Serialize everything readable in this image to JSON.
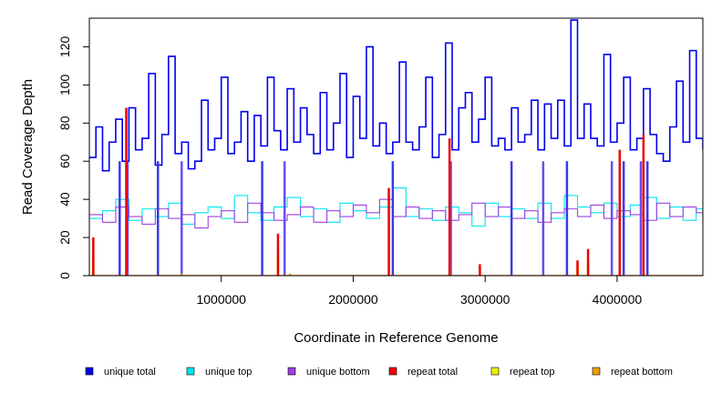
{
  "chart_data": {
    "type": "line",
    "title": "",
    "xlabel": "Coordinate in Reference Genome",
    "ylabel": "Read Coverage Depth",
    "xlim": [
      0,
      4650000
    ],
    "ylim": [
      0,
      135
    ],
    "x_ticks": [
      1000000,
      2000000,
      3000000,
      4000000
    ],
    "x_tick_labels": [
      "1000000",
      "2000000",
      "3000000",
      "4000000"
    ],
    "y_ticks": [
      0,
      20,
      40,
      60,
      80,
      100,
      120
    ],
    "y_tick_labels": [
      "0",
      "20",
      "40",
      "60",
      "80",
      "100",
      "120"
    ],
    "grid": false,
    "legend_position": "bottom",
    "colors": {
      "unique_total": "#0000ee",
      "unique_top": "#00e5ee",
      "unique_bottom": "#a040e0",
      "repeat_total": "#ee0000",
      "repeat_top": "#eeee00",
      "repeat_bottom": "#eea000"
    },
    "series": [
      {
        "name": "unique total",
        "color": "#0000ee",
        "x": [
          0,
          50000,
          100000,
          150000,
          200000,
          250000,
          300000,
          350000,
          400000,
          450000,
          500000,
          550000,
          600000,
          650000,
          700000,
          750000,
          800000,
          850000,
          900000,
          950000,
          1000000,
          1050000,
          1100000,
          1150000,
          1200000,
          1250000,
          1300000,
          1350000,
          1400000,
          1450000,
          1500000,
          1550000,
          1600000,
          1650000,
          1700000,
          1750000,
          1800000,
          1850000,
          1900000,
          1950000,
          2000000,
          2050000,
          2100000,
          2150000,
          2200000,
          2250000,
          2300000,
          2350000,
          2400000,
          2450000,
          2500000,
          2550000,
          2600000,
          2650000,
          2700000,
          2750000,
          2800000,
          2850000,
          2900000,
          2950000,
          3000000,
          3050000,
          3100000,
          3150000,
          3200000,
          3250000,
          3300000,
          3350000,
          3400000,
          3450000,
          3500000,
          3550000,
          3600000,
          3650000,
          3700000,
          3750000,
          3800000,
          3850000,
          3900000,
          3950000,
          4000000,
          4050000,
          4100000,
          4150000,
          4200000,
          4250000,
          4300000,
          4350000,
          4400000,
          4450000,
          4500000,
          4550000,
          4600000,
          4650000
        ],
        "values": [
          62,
          78,
          55,
          70,
          82,
          60,
          88,
          66,
          72,
          106,
          58,
          74,
          115,
          64,
          70,
          56,
          60,
          92,
          66,
          72,
          104,
          64,
          70,
          86,
          60,
          84,
          68,
          104,
          76,
          66,
          98,
          70,
          88,
          74,
          64,
          96,
          66,
          80,
          106,
          62,
          94,
          72,
          120,
          68,
          80,
          64,
          70,
          112,
          70,
          66,
          78,
          104,
          62,
          74,
          122,
          66,
          88,
          96,
          70,
          82,
          104,
          68,
          72,
          66,
          88,
          70,
          74,
          92,
          66,
          90,
          72,
          92,
          68,
          134,
          72,
          90,
          72,
          68,
          116,
          70,
          80,
          104,
          66,
          72,
          98,
          74,
          64,
          60,
          78,
          102,
          70,
          118,
          72,
          66
        ]
      },
      {
        "name": "unique top",
        "color": "#00e5ee",
        "x": [
          0,
          100000,
          200000,
          300000,
          400000,
          500000,
          600000,
          700000,
          800000,
          900000,
          1000000,
          1100000,
          1200000,
          1300000,
          1400000,
          1500000,
          1600000,
          1700000,
          1800000,
          1900000,
          2000000,
          2100000,
          2200000,
          2300000,
          2400000,
          2500000,
          2600000,
          2700000,
          2800000,
          2900000,
          3000000,
          3100000,
          3200000,
          3300000,
          3400000,
          3500000,
          3600000,
          3700000,
          3800000,
          3900000,
          4000000,
          4100000,
          4200000,
          4300000,
          4400000,
          4500000,
          4600000,
          4650000
        ],
        "values": [
          30,
          34,
          40,
          29,
          35,
          31,
          38,
          27,
          33,
          36,
          30,
          42,
          33,
          29,
          36,
          41,
          31,
          35,
          28,
          38,
          34,
          30,
          36,
          46,
          31,
          35,
          29,
          36,
          33,
          26,
          38,
          31,
          35,
          30,
          38,
          30,
          42,
          36,
          33,
          38,
          31,
          37,
          41,
          30,
          36,
          29,
          35,
          30
        ]
      },
      {
        "name": "unique bottom",
        "color": "#a040e0",
        "x": [
          0,
          100000,
          200000,
          300000,
          400000,
          500000,
          600000,
          700000,
          800000,
          900000,
          1000000,
          1100000,
          1200000,
          1300000,
          1400000,
          1500000,
          1600000,
          1700000,
          1800000,
          1900000,
          2000000,
          2100000,
          2200000,
          2300000,
          2400000,
          2500000,
          2600000,
          2700000,
          2800000,
          2900000,
          3000000,
          3100000,
          3200000,
          3300000,
          3400000,
          3500000,
          3600000,
          3700000,
          3800000,
          3900000,
          4000000,
          4100000,
          4200000,
          4300000,
          4400000,
          4500000,
          4600000,
          4650000
        ],
        "values": [
          32,
          28,
          36,
          31,
          27,
          35,
          30,
          32,
          25,
          31,
          34,
          28,
          38,
          33,
          29,
          32,
          36,
          28,
          34,
          31,
          37,
          33,
          40,
          31,
          36,
          30,
          34,
          29,
          32,
          38,
          31,
          36,
          30,
          34,
          28,
          33,
          35,
          31,
          37,
          30,
          34,
          32,
          29,
          38,
          31,
          36,
          33,
          30
        ]
      },
      {
        "name": "repeat total",
        "color": "#ee0000",
        "x": [
          30000,
          280000,
          1430000,
          2270000,
          2730000,
          2960000,
          3700000,
          3780000,
          4020000,
          4200000
        ],
        "values": [
          20,
          88,
          22,
          46,
          72,
          6,
          8,
          14,
          66,
          74
        ]
      },
      {
        "name": "repeat top",
        "color": "#eeee00",
        "x": [
          30000,
          280000,
          1430000,
          2730000,
          2960000,
          3700000,
          3780000
        ],
        "values": [
          8,
          2,
          10,
          4,
          3,
          4,
          6
        ]
      },
      {
        "name": "repeat bottom",
        "color": "#eea000",
        "x": [
          30000,
          280000,
          700000,
          1430000,
          1520000,
          2960000,
          3700000,
          3780000
        ],
        "values": [
          10,
          3,
          1,
          14,
          1,
          4,
          5,
          8
        ]
      }
    ],
    "dips": [
      230000,
      290000,
      520000,
      700000,
      1310000,
      1480000,
      2300000,
      2740000,
      3200000,
      3440000,
      3620000,
      3960000,
      4050000,
      4180000,
      4230000
    ],
    "legend": {
      "items": [
        {
          "label": "unique total",
          "color": "#0000ee"
        },
        {
          "label": "unique top",
          "color": "#00e5ee"
        },
        {
          "label": "unique bottom",
          "color": "#a040e0"
        },
        {
          "label": "repeat total",
          "color": "#ee0000"
        },
        {
          "label": "repeat top",
          "color": "#eeee00"
        },
        {
          "label": "repeat bottom",
          "color": "#eea000"
        }
      ]
    }
  }
}
